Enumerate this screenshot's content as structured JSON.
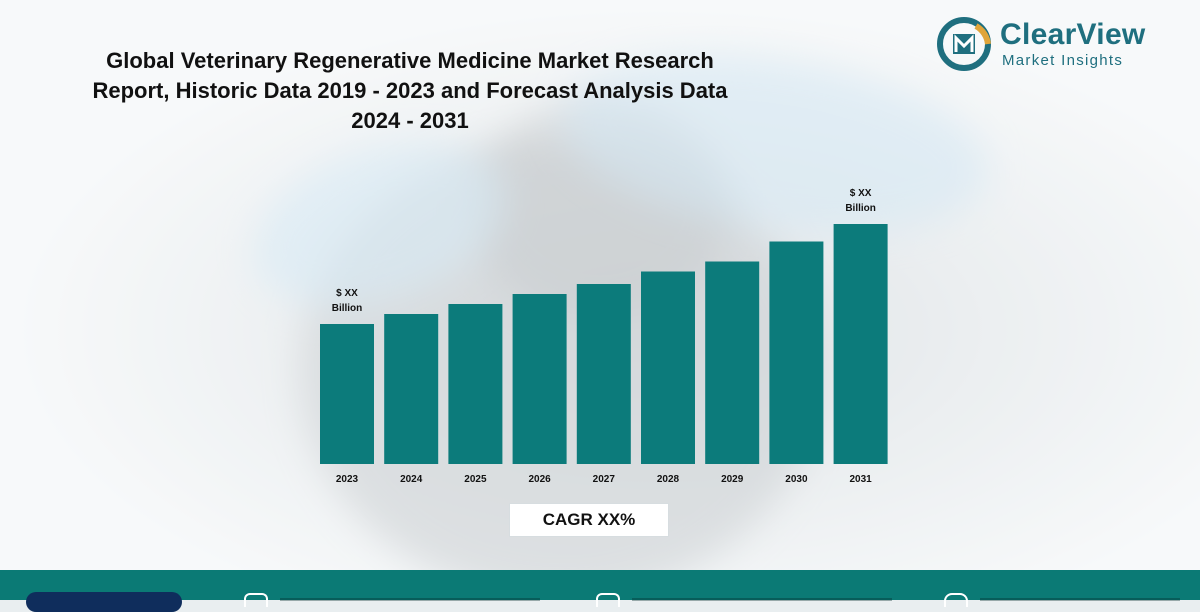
{
  "header": {
    "title_line1": "Global Veterinary Regenerative Medicine Market Research",
    "title_line2": "Report, Historic Data 2019 - 2023 and Forecast Analysis Data",
    "title_line3": "2024 - 2031"
  },
  "logo": {
    "name": "ClearView",
    "subtitle": "Market Insights",
    "icon": "clearview-logo-icon"
  },
  "chart_data": {
    "type": "bar",
    "title": "Global Veterinary Regenerative Medicine Market Research Report, Historic Data 2019 - 2023 and Forecast Analysis Data 2024 - 2031",
    "categories": [
      "2023",
      "2024",
      "2025",
      "2026",
      "2027",
      "2028",
      "2029",
      "2030",
      "2031"
    ],
    "values": [
      56,
      60,
      64,
      68,
      72,
      77,
      81,
      89,
      96
    ],
    "value_note": "relative bar heights (unlabelled axis, actual values shown as $ XX)",
    "data_labels": [
      {
        "category": "2023",
        "line1": "$ XX",
        "line2": "Billion"
      },
      {
        "category": "2031",
        "line1": "$ XX",
        "line2": "Billion"
      }
    ],
    "xlabel": "",
    "ylabel": "",
    "ylim": [
      0,
      100
    ],
    "grid": false,
    "bar_color": "#0c7b7b"
  },
  "cagr": {
    "label": "CAGR XX%"
  },
  "colors": {
    "teal": "#0c7b7b",
    "footer": "#0b7a75",
    "navy": "#0f2d5c",
    "brand": "#1f6f7f"
  }
}
